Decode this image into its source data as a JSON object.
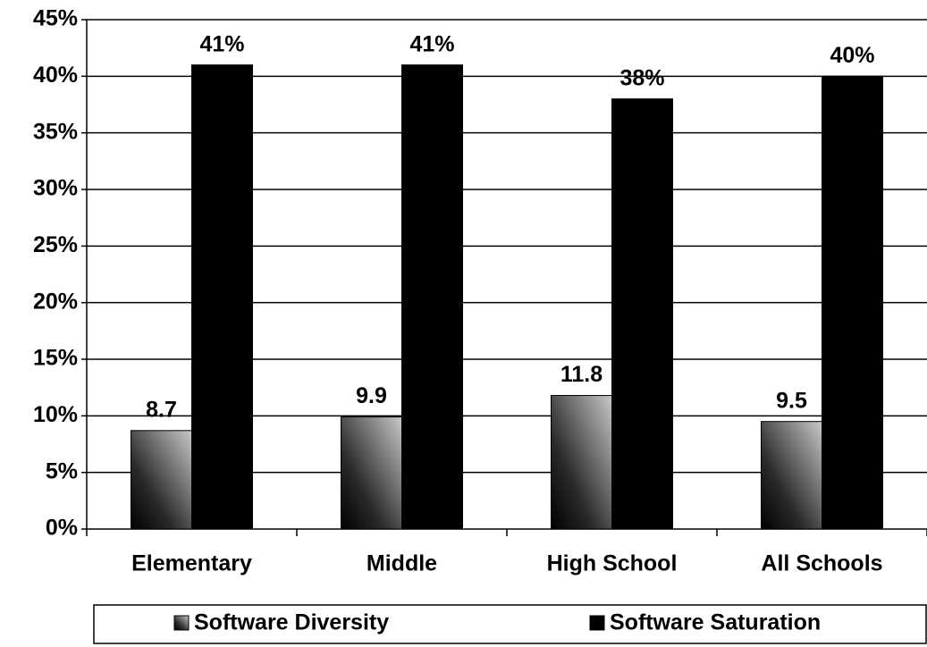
{
  "chart_data": {
    "type": "bar",
    "categories": [
      "Elementary",
      "Middle",
      "High School",
      "All Schools"
    ],
    "series": [
      {
        "name": "Software Diversity",
        "color": "#c8c8c8",
        "values": [
          8.7,
          9.9,
          11.8,
          9.5
        ]
      },
      {
        "name": "Software Saturation",
        "color": "#000000",
        "values": [
          41,
          41,
          38,
          40
        ],
        "value_labels": [
          "41%",
          "41%",
          "38%",
          "40%"
        ]
      }
    ],
    "ylim": [
      0,
      45
    ],
    "yticks": [
      {
        "value": 0,
        "label": "0%"
      },
      {
        "value": 5,
        "label": "5%"
      },
      {
        "value": 10,
        "label": "10%"
      },
      {
        "value": 15,
        "label": "15%"
      },
      {
        "value": 20,
        "label": "20%"
      },
      {
        "value": 25,
        "label": "25%"
      },
      {
        "value": 30,
        "label": "30%"
      },
      {
        "value": 35,
        "label": "35%"
      },
      {
        "value": 40,
        "label": "40%"
      },
      {
        "value": 45,
        "label": "45%"
      }
    ],
    "grid": true,
    "legend": "bottom"
  }
}
